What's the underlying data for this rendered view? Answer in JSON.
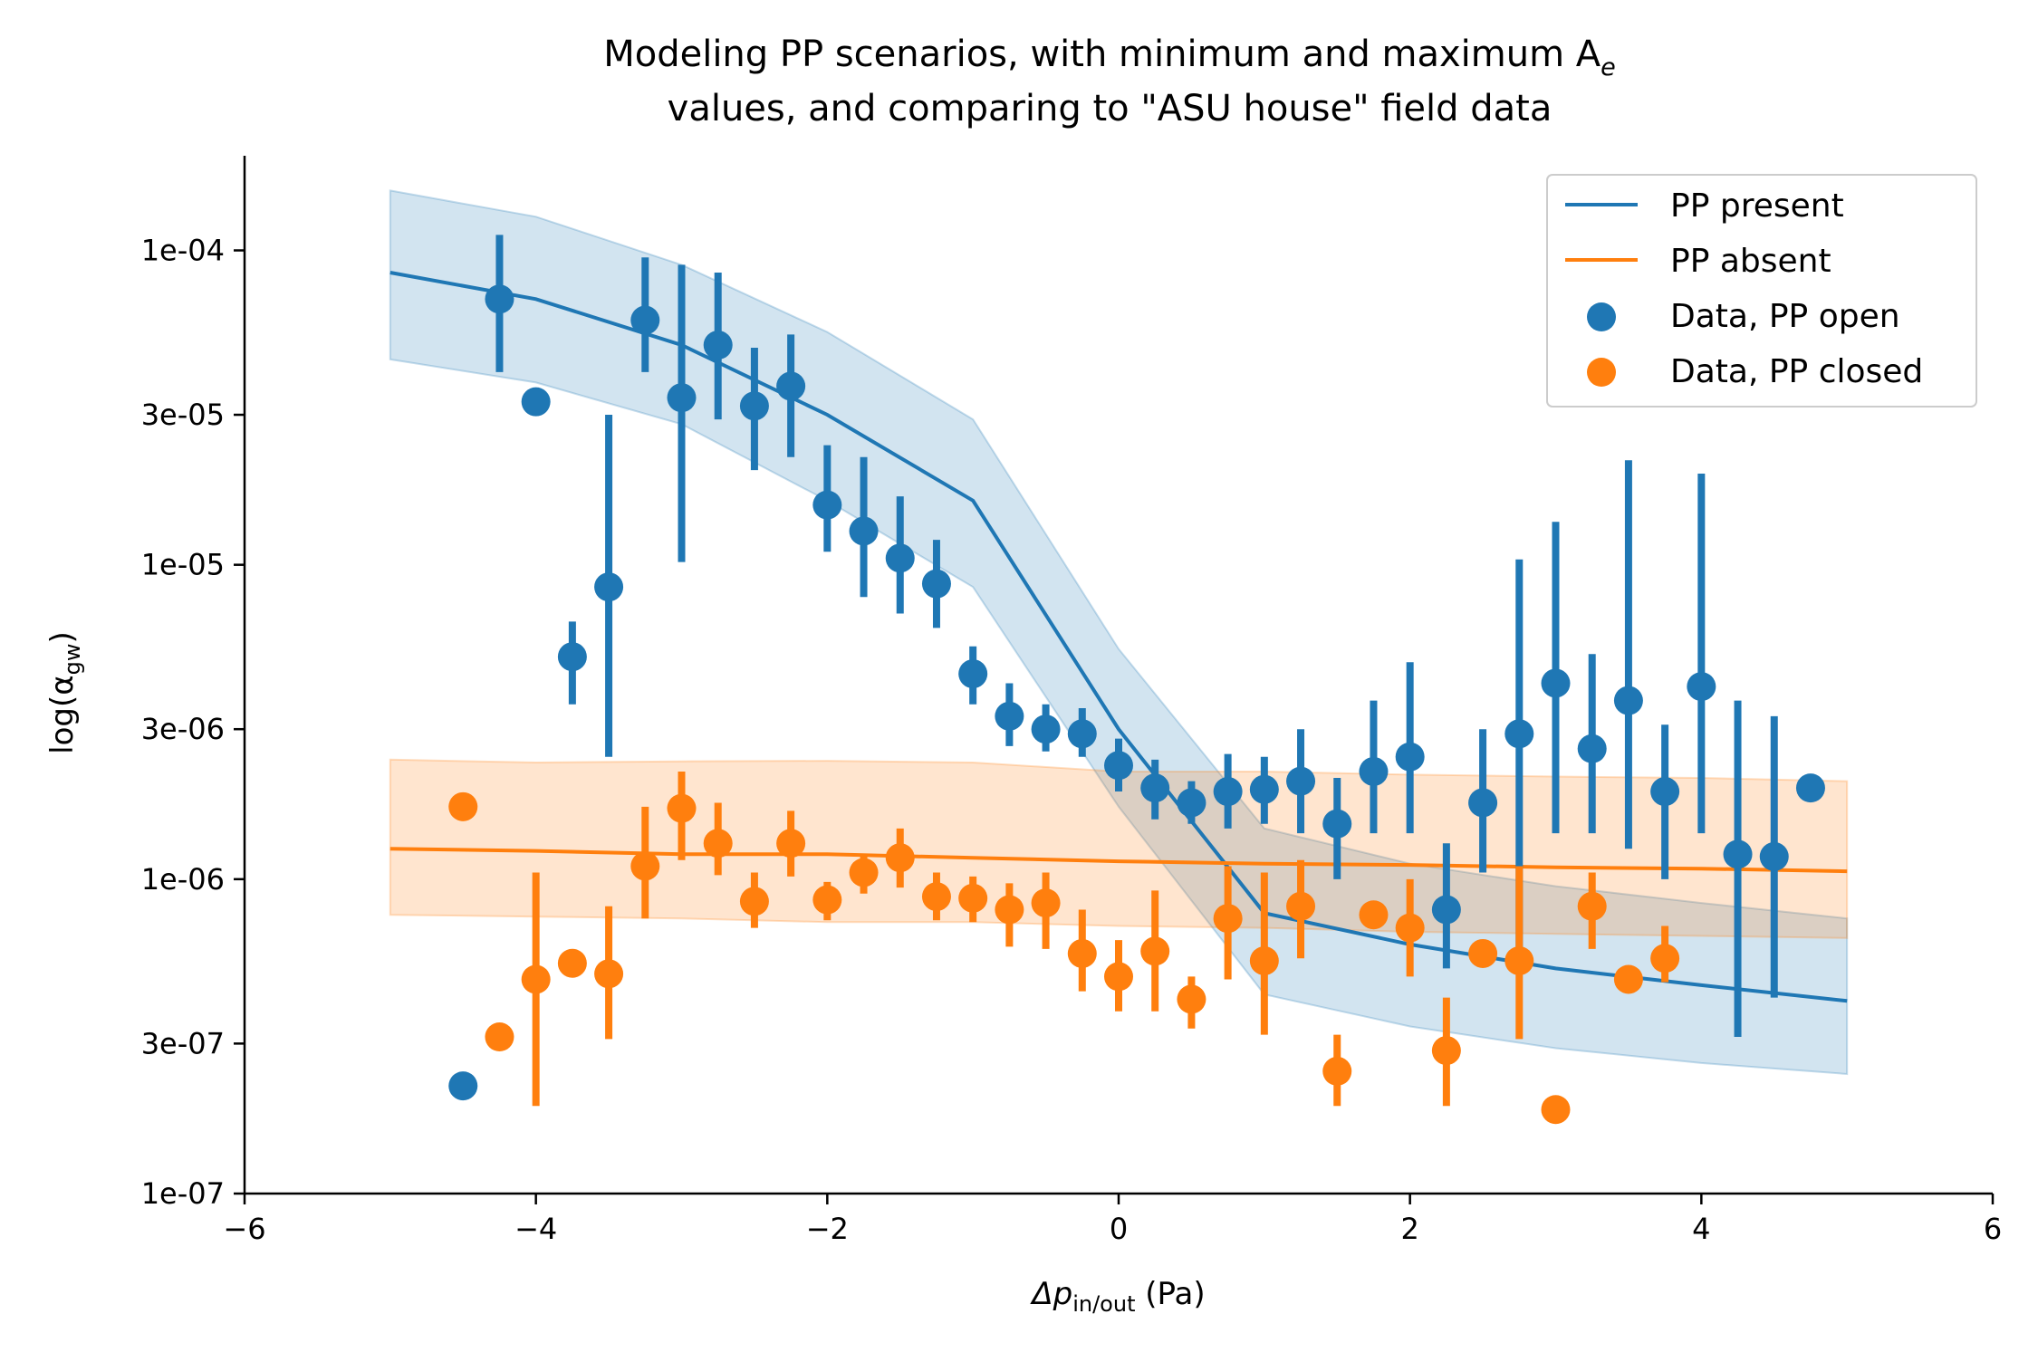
{
  "chart_data": {
    "type": "line",
    "title_line1": "Modeling PP scenarios, with minimum and maximum A",
    "title_sub": "e",
    "title_line2": "values, and comparing to \"ASU house\" field data",
    "xlabel_main": "Δp",
    "xlabel_sub": "in/out",
    "xlabel_unit": " (Pa)",
    "ylabel_main": "log(α",
    "ylabel_sub": "gw",
    "ylabel_close": ")",
    "x_range": [
      -6,
      6
    ],
    "y_range": [
      1e-07,
      0.0002
    ],
    "y_scale": "log",
    "x_ticks": [
      -6,
      -4,
      -2,
      0,
      2,
      4,
      6
    ],
    "x_tick_labels": [
      "−6",
      "−4",
      "−2",
      "0",
      "2",
      "4",
      "6"
    ],
    "y_ticks": [
      1e-07,
      3e-07,
      1e-06,
      3e-06,
      1e-05,
      3e-05,
      0.0001
    ],
    "y_tick_labels": [
      "1e-07",
      "3e-07",
      "1e-06",
      "3e-06",
      "1e-05",
      "3e-05",
      "1e-04"
    ],
    "legend_position": "top-right",
    "colors": {
      "blue": "#1f77b4",
      "orange": "#ff7f0e"
    },
    "series": [
      {
        "name": "PP present",
        "kind": "line",
        "color": "#1f77b4",
        "x": [
          -5,
          -4,
          -3,
          -2,
          -1,
          0,
          1,
          2,
          3,
          4,
          5
        ],
        "y": [
          8.5e-05,
          7e-05,
          5e-05,
          3e-05,
          1.6e-05,
          3e-06,
          7.8e-07,
          6.2e-07,
          5.2e-07,
          4.6e-07,
          4.1e-07
        ],
        "band_lower": [
          4.5e-05,
          3.8e-05,
          2.8e-05,
          1.6e-05,
          8.5e-06,
          1.7e-06,
          4.3e-07,
          3.4e-07,
          2.9e-07,
          2.6e-07,
          2.4e-07
        ],
        "band_upper": [
          0.000155,
          0.000128,
          9e-05,
          5.5e-05,
          2.9e-05,
          5.4e-06,
          1.45e-06,
          1.12e-06,
          9.5e-07,
          8.4e-07,
          7.5e-07
        ]
      },
      {
        "name": "PP absent",
        "kind": "line",
        "color": "#ff7f0e",
        "x": [
          -5,
          -4,
          -3,
          -2,
          -1,
          0,
          1,
          2,
          3,
          4,
          5
        ],
        "y": [
          1.25e-06,
          1.23e-06,
          1.2e-06,
          1.2e-06,
          1.17e-06,
          1.14e-06,
          1.12e-06,
          1.11e-06,
          1.09e-06,
          1.08e-06,
          1.06e-06
        ],
        "band_lower": [
          7.7e-07,
          7.6e-07,
          7.5e-07,
          7.3e-07,
          7.3e-07,
          7.1e-07,
          7e-07,
          6.8e-07,
          6.7e-07,
          6.6e-07,
          6.5e-07
        ],
        "band_upper": [
          2.4e-06,
          2.35e-06,
          2.37e-06,
          2.38e-06,
          2.35e-06,
          2.2e-06,
          2.2e-06,
          2.15e-06,
          2.12e-06,
          2.1e-06,
          2.05e-06
        ]
      },
      {
        "name": "Data, PP open",
        "kind": "scatter",
        "color": "#1f77b4",
        "points": [
          {
            "x": -4.5,
            "y": 2.2e-07
          },
          {
            "x": -4.25,
            "y": 7e-05,
            "lo": 4.1e-05,
            "hi": 0.000112
          },
          {
            "x": -4.0,
            "y": 3.3e-05
          },
          {
            "x": -3.75,
            "y": 5.1e-06,
            "lo": 3.6e-06,
            "hi": 6.6e-06
          },
          {
            "x": -3.5,
            "y": 8.5e-06,
            "lo": 2.45e-06,
            "hi": 3e-05
          },
          {
            "x": -3.25,
            "y": 6e-05,
            "lo": 4.1e-05,
            "hi": 9.5e-05
          },
          {
            "x": -3.0,
            "y": 3.4e-05,
            "lo": 1.02e-05,
            "hi": 9e-05
          },
          {
            "x": -2.75,
            "y": 5e-05,
            "lo": 2.9e-05,
            "hi": 8.5e-05
          },
          {
            "x": -2.5,
            "y": 3.2e-05,
            "lo": 2e-05,
            "hi": 4.9e-05
          },
          {
            "x": -2.25,
            "y": 3.7e-05,
            "lo": 2.2e-05,
            "hi": 5.4e-05
          },
          {
            "x": -2.0,
            "y": 1.55e-05,
            "lo": 1.1e-05,
            "hi": 2.4e-05
          },
          {
            "x": -1.75,
            "y": 1.28e-05,
            "lo": 7.9e-06,
            "hi": 2.2e-05
          },
          {
            "x": -1.5,
            "y": 1.05e-05,
            "lo": 7e-06,
            "hi": 1.65e-05
          },
          {
            "x": -1.25,
            "y": 8.7e-06,
            "lo": 6.3e-06,
            "hi": 1.2e-05
          },
          {
            "x": -1.0,
            "y": 4.5e-06,
            "lo": 3.6e-06,
            "hi": 5.5e-06
          },
          {
            "x": -0.75,
            "y": 3.3e-06,
            "lo": 2.65e-06,
            "hi": 4.2e-06
          },
          {
            "x": -0.5,
            "y": 3e-06,
            "lo": 2.55e-06,
            "hi": 3.6e-06
          },
          {
            "x": -0.25,
            "y": 2.9e-06,
            "lo": 2.45e-06,
            "hi": 3.5e-06
          },
          {
            "x": 0.0,
            "y": 2.3e-06,
            "lo": 1.9e-06,
            "hi": 2.8e-06
          },
          {
            "x": 0.25,
            "y": 1.95e-06,
            "lo": 1.55e-06,
            "hi": 2.4e-06
          },
          {
            "x": 0.5,
            "y": 1.75e-06,
            "lo": 1.5e-06,
            "hi": 2.05e-06
          },
          {
            "x": 0.75,
            "y": 1.9e-06,
            "lo": 1.45e-06,
            "hi": 2.5e-06
          },
          {
            "x": 1.0,
            "y": 1.93e-06,
            "lo": 1.5e-06,
            "hi": 2.45e-06
          },
          {
            "x": 1.25,
            "y": 2.05e-06,
            "lo": 1.4e-06,
            "hi": 3e-06
          },
          {
            "x": 1.5,
            "y": 1.5e-06,
            "lo": 1e-06,
            "hi": 2.1e-06
          },
          {
            "x": 1.75,
            "y": 2.2e-06,
            "lo": 1.4e-06,
            "hi": 3.7e-06
          },
          {
            "x": 2.0,
            "y": 2.45e-06,
            "lo": 1.4e-06,
            "hi": 4.9e-06
          },
          {
            "x": 2.25,
            "y": 8e-07,
            "lo": 5.2e-07,
            "hi": 1.3e-06
          },
          {
            "x": 2.5,
            "y": 1.75e-06,
            "lo": 1.05e-06,
            "hi": 3e-06
          },
          {
            "x": 2.75,
            "y": 2.9e-06,
            "lo": 6e-07,
            "hi": 1.04e-05
          },
          {
            "x": 3.0,
            "y": 4.2e-06,
            "lo": 1.4e-06,
            "hi": 1.37e-05
          },
          {
            "x": 3.25,
            "y": 2.6e-06,
            "lo": 1.4e-06,
            "hi": 5.2e-06
          },
          {
            "x": 3.5,
            "y": 3.7e-06,
            "lo": 1.25e-06,
            "hi": 2.15e-05
          },
          {
            "x": 3.75,
            "y": 1.9e-06,
            "lo": 1e-06,
            "hi": 3.1e-06
          },
          {
            "x": 4.0,
            "y": 4.1e-06,
            "lo": 1.4e-06,
            "hi": 1.95e-05
          },
          {
            "x": 4.25,
            "y": 1.2e-06,
            "lo": 3.15e-07,
            "hi": 3.7e-06
          },
          {
            "x": 4.5,
            "y": 1.18e-06,
            "lo": 4.2e-07,
            "hi": 3.3e-06
          },
          {
            "x": 4.75,
            "y": 1.95e-06
          }
        ]
      },
      {
        "name": "Data, PP closed",
        "kind": "scatter",
        "color": "#ff7f0e",
        "points": [
          {
            "x": -4.5,
            "y": 1.7e-06
          },
          {
            "x": -4.25,
            "y": 3.15e-07
          },
          {
            "x": -4.0,
            "y": 4.8e-07,
            "lo": 1.9e-07,
            "hi": 1.05e-06
          },
          {
            "x": -3.75,
            "y": 5.4e-07
          },
          {
            "x": -3.5,
            "y": 5e-07,
            "lo": 3.1e-07,
            "hi": 8.2e-07
          },
          {
            "x": -3.25,
            "y": 1.1e-06,
            "lo": 7.5e-07,
            "hi": 1.7e-06
          },
          {
            "x": -3.0,
            "y": 1.68e-06,
            "lo": 1.15e-06,
            "hi": 2.2e-06
          },
          {
            "x": -2.75,
            "y": 1.3e-06,
            "lo": 1.03e-06,
            "hi": 1.75e-06
          },
          {
            "x": -2.5,
            "y": 8.5e-07,
            "lo": 7e-07,
            "hi": 1.05e-06
          },
          {
            "x": -2.25,
            "y": 1.3e-06,
            "lo": 1.02e-06,
            "hi": 1.65e-06
          },
          {
            "x": -2.0,
            "y": 8.6e-07,
            "lo": 7.4e-07,
            "hi": 9.8e-07
          },
          {
            "x": -1.75,
            "y": 1.05e-06,
            "lo": 9e-07,
            "hi": 1.2e-06
          },
          {
            "x": -1.5,
            "y": 1.17e-06,
            "lo": 9.4e-07,
            "hi": 1.45e-06
          },
          {
            "x": -1.25,
            "y": 8.8e-07,
            "lo": 7.4e-07,
            "hi": 1.05e-06
          },
          {
            "x": -1.0,
            "y": 8.7e-07,
            "lo": 7.3e-07,
            "hi": 1.02e-06
          },
          {
            "x": -0.75,
            "y": 8e-07,
            "lo": 6.1e-07,
            "hi": 9.7e-07
          },
          {
            "x": -0.5,
            "y": 8.4e-07,
            "lo": 6e-07,
            "hi": 1.05e-06
          },
          {
            "x": -0.25,
            "y": 5.8e-07,
            "lo": 4.4e-07,
            "hi": 8e-07
          },
          {
            "x": 0.0,
            "y": 4.9e-07,
            "lo": 3.8e-07,
            "hi": 6.4e-07
          },
          {
            "x": 0.25,
            "y": 5.9e-07,
            "lo": 3.8e-07,
            "hi": 9.2e-07
          },
          {
            "x": 0.5,
            "y": 4.15e-07,
            "lo": 3.35e-07,
            "hi": 4.9e-07
          },
          {
            "x": 0.75,
            "y": 7.5e-07,
            "lo": 4.8e-07,
            "hi": 1.1e-06
          },
          {
            "x": 1.0,
            "y": 5.5e-07,
            "lo": 3.2e-07,
            "hi": 1.05e-06
          },
          {
            "x": 1.25,
            "y": 8.2e-07,
            "lo": 5.6e-07,
            "hi": 1.15e-06
          },
          {
            "x": 1.5,
            "y": 2.45e-07,
            "lo": 1.9e-07,
            "hi": 3.2e-07
          },
          {
            "x": 1.75,
            "y": 7.7e-07,
            "lo": 7.1e-07,
            "hi": 8.5e-07
          },
          {
            "x": 2.0,
            "y": 7e-07,
            "lo": 4.9e-07,
            "hi": 1e-06
          },
          {
            "x": 2.25,
            "y": 2.85e-07,
            "lo": 1.9e-07,
            "hi": 4.2e-07
          },
          {
            "x": 2.5,
            "y": 5.8e-07
          },
          {
            "x": 2.75,
            "y": 5.5e-07,
            "lo": 3.1e-07,
            "hi": 1.1e-06
          },
          {
            "x": 3.0,
            "y": 1.85e-07
          },
          {
            "x": 3.25,
            "y": 8.2e-07,
            "lo": 6e-07,
            "hi": 1.05e-06
          },
          {
            "x": 3.5,
            "y": 4.8e-07
          },
          {
            "x": 3.75,
            "y": 5.6e-07,
            "lo": 4.7e-07,
            "hi": 7.1e-07
          }
        ]
      }
    ]
  }
}
